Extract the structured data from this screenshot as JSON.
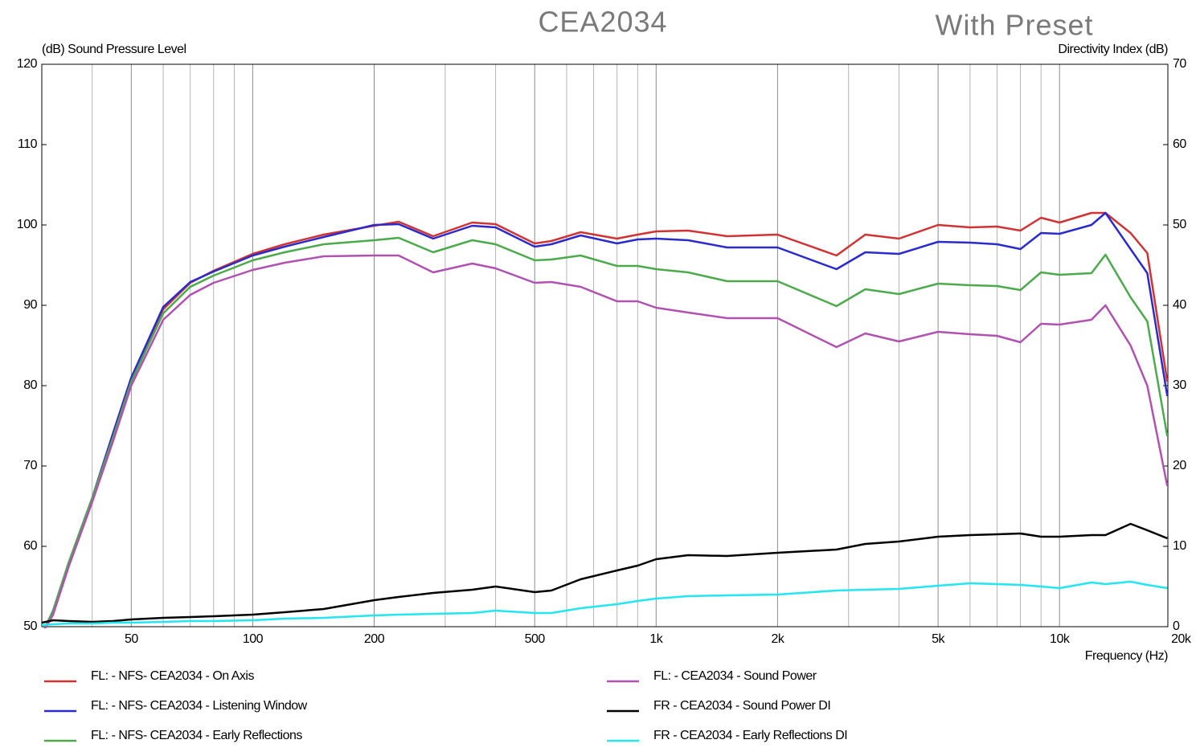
{
  "chart_data": {
    "type": "line",
    "title": "CEA2034",
    "subtitle": "With Preset",
    "y_label": "(dB)  Sound Pressure Level",
    "y2_label": "Directivity Index  (dB)",
    "x_label": "Frequency  (Hz)",
    "x_log": true,
    "xlim": [
      30,
      18560
    ],
    "xticks": [
      50,
      100,
      200,
      500,
      {
        "value": 1000,
        "label": "1k"
      },
      {
        "value": 2000,
        "label": "2k"
      },
      {
        "value": 5000,
        "label": "5k"
      },
      {
        "value": 10000,
        "label": "10k"
      },
      {
        "value": 20000,
        "label": "20k"
      }
    ],
    "x_minor_grid": [
      40,
      60,
      70,
      80,
      90,
      300,
      400,
      600,
      700,
      800,
      900,
      3000,
      4000,
      6000,
      7000,
      8000,
      9000
    ],
    "ylim": [
      50,
      120
    ],
    "yticks": [
      50,
      60,
      70,
      80,
      90,
      100,
      110,
      120
    ],
    "y2lim": [
      0,
      70
    ],
    "y2ticks": [
      0,
      10,
      20,
      30,
      40,
      50,
      60,
      70
    ],
    "x": [
      30,
      32,
      35,
      40,
      45,
      50,
      60,
      70,
      80,
      100,
      120,
      150,
      200,
      230,
      280,
      350,
      400,
      500,
      550,
      650,
      800,
      900,
      1000,
      1200,
      1500,
      2000,
      2800,
      3300,
      4000,
      5000,
      6000,
      7000,
      8000,
      9000,
      10000,
      12000,
      13000,
      15000,
      16500,
      18500
    ],
    "series": [
      {
        "name": "FL: - NFS- CEA2034 - On Axis",
        "color": "#d03333",
        "values": [
          49,
          52,
          58,
          66,
          74,
          81,
          89.5,
          92.8,
          94.3,
          96.4,
          97.6,
          98.8,
          99.9,
          100.4,
          98.6,
          100.3,
          100.1,
          97.7,
          98,
          99.1,
          98.3,
          98.8,
          99.2,
          99.3,
          98.6,
          98.8,
          96.2,
          98.8,
          98.3,
          100,
          99.7,
          99.8,
          99.3,
          100.9,
          100.3,
          101.5,
          101.5,
          99,
          96.5,
          80.5
        ]
      },
      {
        "name": "FL: - NFS- CEA2034 - Listening Window",
        "color": "#2b2bcc",
        "values": [
          49,
          52,
          58,
          66,
          74,
          81,
          89.8,
          92.9,
          94.2,
          96.2,
          97.3,
          98.5,
          100,
          100.1,
          98.3,
          99.9,
          99.7,
          97.3,
          97.6,
          98.7,
          97.7,
          98.2,
          98.3,
          98.1,
          97.2,
          97.2,
          94.5,
          96.6,
          96.4,
          97.9,
          97.8,
          97.6,
          97,
          99,
          98.9,
          100,
          101.5,
          97,
          94,
          78.7
        ]
      },
      {
        "name": "FL: - NFS- CEA2034 - Early Reflections",
        "color": "#4caa4c",
        "values": [
          49,
          52,
          58,
          66,
          73.5,
          80.5,
          89,
          92.3,
          93.7,
          95.6,
          96.6,
          97.6,
          98.1,
          98.4,
          96.6,
          98.1,
          97.6,
          95.6,
          95.7,
          96.2,
          94.9,
          94.9,
          94.5,
          94.1,
          93,
          93,
          89.9,
          92,
          91.4,
          92.7,
          92.5,
          92.4,
          91.9,
          94.1,
          93.8,
          94,
          96.3,
          91,
          88,
          73.7
        ]
      },
      {
        "name": "FL: - CEA2034 - Sound Power",
        "color": "#b052b0",
        "values": [
          49,
          51.5,
          57.5,
          65.5,
          73,
          80,
          88.2,
          91.3,
          92.8,
          94.4,
          95.3,
          96.1,
          96.2,
          96.2,
          94.1,
          95.2,
          94.6,
          92.8,
          92.9,
          92.3,
          90.5,
          90.5,
          89.7,
          89.1,
          88.4,
          88.4,
          84.8,
          86.5,
          85.5,
          86.7,
          86.4,
          86.2,
          85.4,
          87.7,
          87.6,
          88.2,
          90,
          85,
          80,
          67.5
        ]
      },
      {
        "name": "FR - CEA2034 - Sound Power DI",
        "color": "#000000",
        "axis": "y2",
        "values": [
          0.5,
          0.8,
          0.7,
          0.6,
          0.7,
          0.9,
          1.1,
          1.2,
          1.3,
          1.5,
          1.8,
          2.2,
          3.3,
          3.7,
          4.2,
          4.6,
          5,
          4.3,
          4.5,
          5.9,
          7,
          7.6,
          8.4,
          8.9,
          8.8,
          9.2,
          9.6,
          10.3,
          10.6,
          11.2,
          11.4,
          11.5,
          11.6,
          11.2,
          11.2,
          11.4,
          11.4,
          12.8,
          12,
          11
        ]
      },
      {
        "name": "FR - CEA2034 - Early Reflections DI",
        "color": "#22e6f0",
        "axis": "y2",
        "values": [
          0.2,
          0.3,
          0.4,
          0.4,
          0.5,
          0.5,
          0.6,
          0.7,
          0.7,
          0.8,
          1,
          1.1,
          1.4,
          1.5,
          1.6,
          1.7,
          2,
          1.7,
          1.7,
          2.3,
          2.8,
          3.2,
          3.5,
          3.8,
          3.9,
          4,
          4.5,
          4.6,
          4.7,
          5.1,
          5.4,
          5.3,
          5.2,
          5,
          4.8,
          5.5,
          5.3,
          5.6,
          5.2,
          4.8
        ]
      }
    ]
  }
}
